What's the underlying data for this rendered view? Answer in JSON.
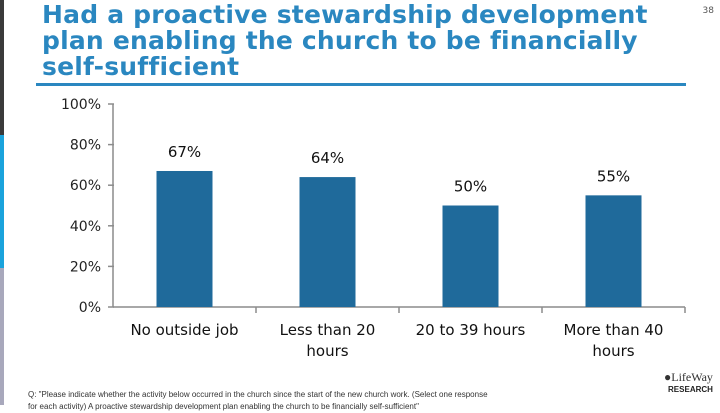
{
  "slide": {
    "title": "Had a proactive stewardship development plan enabling the church to be financially self-sufficient",
    "page_number": "38",
    "footer_line1": "Q: \"Please indicate whether the activity below occurred in the church since the start of the new church work. (Select one response",
    "footer_line2": "for each activity) A proactive stewardship development plan enabling the church to be financially self-sufficient\"",
    "logo_text": "LifeWay",
    "logo_sub": "RESEARCH",
    "colors": {
      "title": "#2a87c0",
      "bar": "#1f6a9b",
      "axis": "#8c8c8c",
      "stripe_top": "#3a3a3a",
      "stripe_mid": "#1aa3dc",
      "stripe_bottom": "#a8a8bc"
    }
  },
  "chart_data": {
    "type": "bar",
    "categories": [
      "No outside job",
      "Less than 20 hours",
      "20 to 39 hours",
      "More than 40 hours"
    ],
    "category_lines": [
      [
        "No outside job"
      ],
      [
        "Less than 20",
        "hours"
      ],
      [
        "20 to 39 hours"
      ],
      [
        "More than 40",
        "hours"
      ]
    ],
    "values": [
      67,
      64,
      50,
      55
    ],
    "data_labels": [
      "67%",
      "64%",
      "50%",
      "55%"
    ],
    "ylim": [
      0,
      100
    ],
    "yticks": [
      0,
      20,
      40,
      60,
      80,
      100
    ],
    "ytick_labels": [
      "0%",
      "20%",
      "40%",
      "60%",
      "80%",
      "100%"
    ],
    "grid": false,
    "legend": "none"
  }
}
